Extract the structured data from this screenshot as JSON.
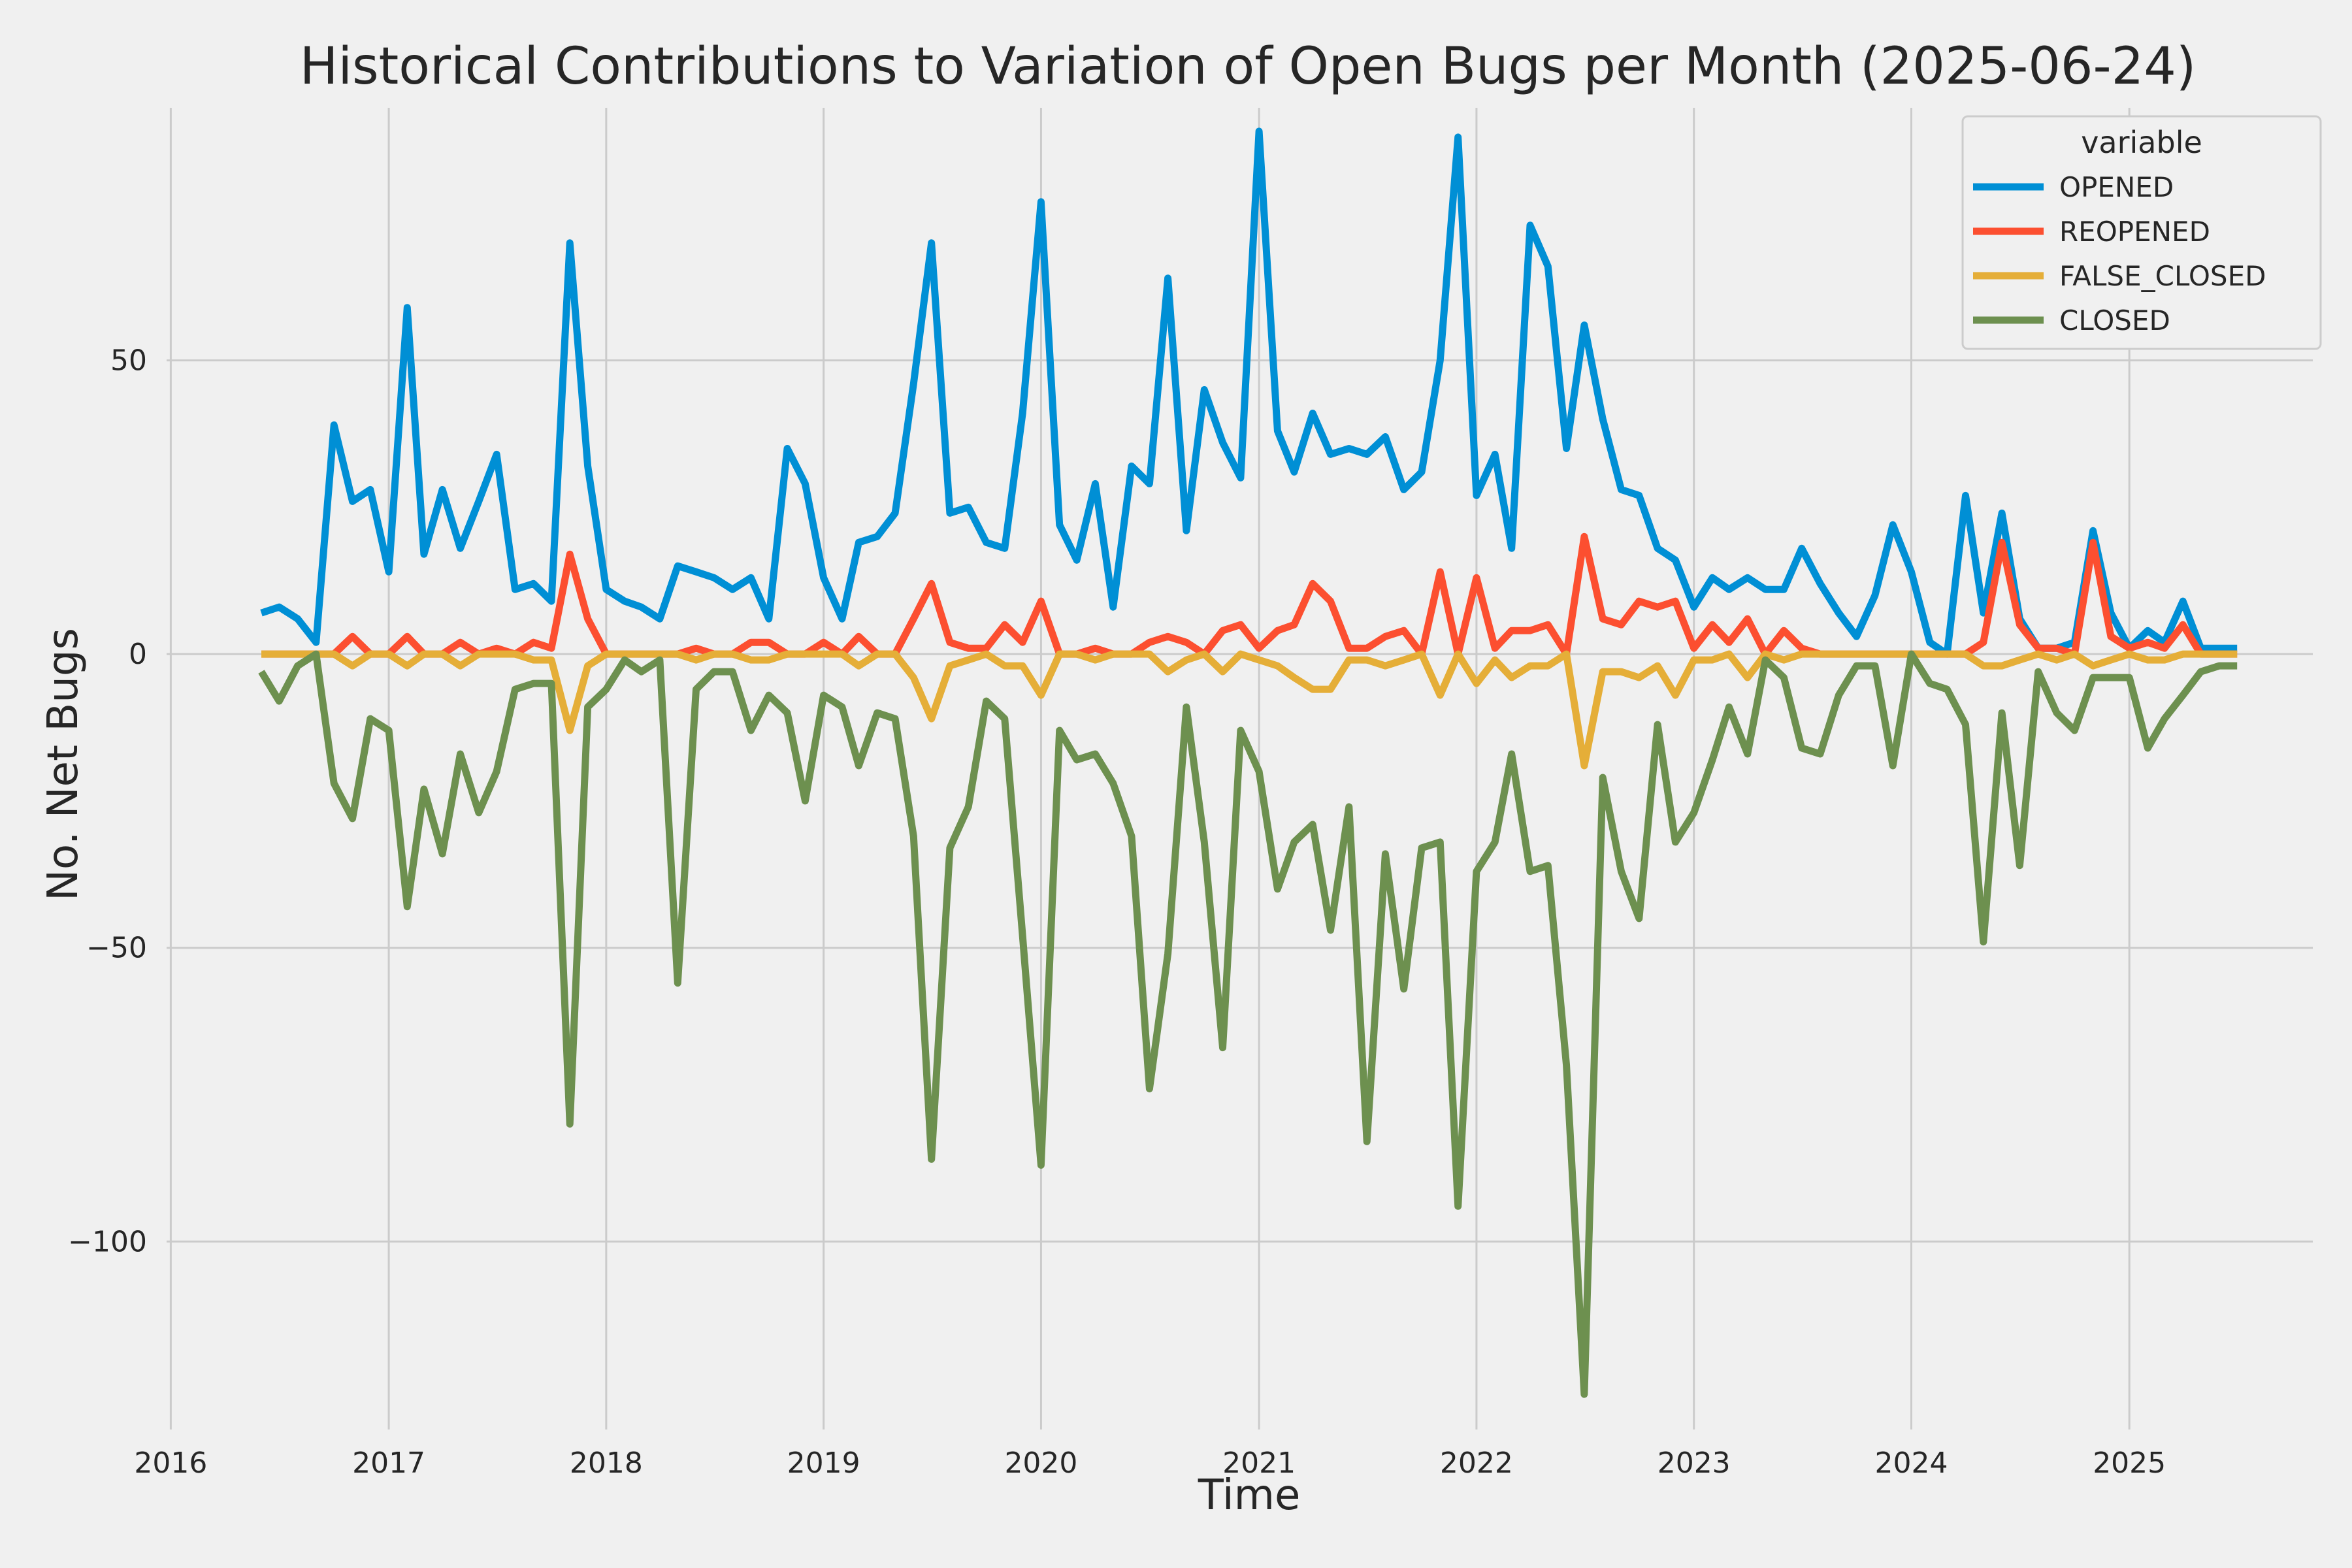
{
  "chart_data": {
    "type": "line",
    "title": "Historical Contributions to Variation of Open Bugs per Month (2025-06-24)",
    "xlabel": "Time",
    "ylabel": "No. Net Bugs",
    "x_tick_labels": [
      "2016",
      "2017",
      "2018",
      "2019",
      "2020",
      "2021",
      "2022",
      "2023",
      "2024",
      "2025"
    ],
    "y_tick_labels": [
      "50",
      "0",
      "−50",
      "−100"
    ],
    "y_ticks": [
      50,
      0,
      -50,
      -100
    ],
    "ylim": [
      -132,
      98
    ],
    "xlim": [
      "2015-12-25",
      "2025-11-05"
    ],
    "grid": true,
    "legend": {
      "title": "variable",
      "position": "top-right"
    },
    "dates": [
      "2016-06",
      "2016-07",
      "2016-08",
      "2016-09",
      "2016-10",
      "2016-11",
      "2016-12",
      "2017-01",
      "2017-02",
      "2017-03",
      "2017-04",
      "2017-05",
      "2017-06",
      "2017-07",
      "2017-08",
      "2017-09",
      "2017-10",
      "2017-11",
      "2017-12",
      "2018-01",
      "2018-02",
      "2018-03",
      "2018-04",
      "2018-05",
      "2018-06",
      "2018-07",
      "2018-08",
      "2018-09",
      "2018-10",
      "2018-11",
      "2018-12",
      "2019-01",
      "2019-02",
      "2019-03",
      "2019-04",
      "2019-05",
      "2019-06",
      "2019-07",
      "2019-08",
      "2019-09",
      "2019-10",
      "2019-11",
      "2019-12",
      "2020-01",
      "2020-02",
      "2020-03",
      "2020-04",
      "2020-05",
      "2020-06",
      "2020-07",
      "2020-08",
      "2020-09",
      "2020-10",
      "2020-11",
      "2020-12",
      "2021-01",
      "2021-02",
      "2021-03",
      "2021-04",
      "2021-05",
      "2021-06",
      "2021-07",
      "2021-08",
      "2021-09",
      "2021-10",
      "2021-11",
      "2021-12",
      "2022-01",
      "2022-02",
      "2022-03",
      "2022-04",
      "2022-05",
      "2022-06",
      "2022-07",
      "2022-08",
      "2022-09",
      "2022-10",
      "2022-11",
      "2022-12",
      "2023-01",
      "2023-02",
      "2023-03",
      "2023-04",
      "2023-05",
      "2023-06",
      "2023-07",
      "2023-08",
      "2023-09",
      "2023-10",
      "2023-11",
      "2023-12",
      "2024-01",
      "2024-02",
      "2024-03",
      "2024-04",
      "2024-05",
      "2024-06",
      "2024-07",
      "2024-08",
      "2024-09",
      "2024-10",
      "2024-11",
      "2024-12",
      "2025-01",
      "2025-02",
      "2025-03",
      "2025-04",
      "2025-05",
      "2025-06",
      "2025-07"
    ],
    "series": [
      {
        "name": "OPENED",
        "color": "#008fd5",
        "values": [
          7,
          8,
          6,
          2,
          39,
          26,
          28,
          14,
          59,
          17,
          28,
          18,
          26,
          34,
          11,
          12,
          9,
          70,
          32,
          11,
          9,
          8,
          6,
          15,
          14,
          13,
          11,
          13,
          6,
          35,
          29,
          13,
          6,
          19,
          20,
          24,
          46,
          70,
          24,
          25,
          19,
          18,
          41,
          77,
          22,
          16,
          29,
          8,
          32,
          29,
          64,
          21,
          45,
          36,
          30,
          89,
          38,
          31,
          41,
          34,
          35,
          34,
          37,
          28,
          31,
          50,
          88,
          27,
          34,
          18,
          73,
          66,
          35,
          56,
          40,
          28,
          27,
          18,
          16,
          8,
          13,
          11,
          13,
          11,
          11,
          18,
          12,
          7,
          3,
          10,
          22,
          14,
          2,
          0,
          27,
          7,
          24,
          6,
          1,
          1,
          2,
          21,
          7,
          1,
          4,
          2,
          9,
          1,
          1,
          1
        ]
      },
      {
        "name": "REOPENED",
        "color": "#fc4f30",
        "values": [
          0,
          0,
          0,
          0,
          0,
          3,
          0,
          0,
          3,
          0,
          0,
          2,
          0,
          1,
          0,
          2,
          1,
          17,
          6,
          0,
          0,
          0,
          0,
          0,
          1,
          0,
          0,
          2,
          2,
          0,
          0,
          2,
          0,
          3,
          0,
          0,
          6,
          12,
          2,
          1,
          1,
          5,
          2,
          9,
          0,
          0,
          1,
          0,
          0,
          2,
          3,
          2,
          0,
          4,
          5,
          1,
          4,
          5,
          12,
          9,
          1,
          1,
          3,
          4,
          0,
          14,
          0,
          13,
          1,
          4,
          4,
          5,
          0,
          20,
          6,
          5,
          9,
          8,
          9,
          1,
          5,
          2,
          6,
          0,
          4,
          1,
          0,
          0,
          0,
          0,
          0,
          0,
          0,
          0,
          0,
          2,
          19,
          5,
          1,
          1,
          0,
          19,
          3,
          1,
          2,
          1,
          5,
          0,
          0,
          0
        ]
      },
      {
        "name": "FALSE_CLOSED",
        "color": "#e5ae38",
        "values": [
          0,
          0,
          0,
          0,
          0,
          -2,
          0,
          0,
          -2,
          0,
          0,
          -2,
          0,
          0,
          0,
          -1,
          -1,
          -13,
          -2,
          0,
          0,
          0,
          0,
          0,
          -1,
          0,
          0,
          -1,
          -1,
          0,
          0,
          0,
          0,
          -2,
          0,
          0,
          -4,
          -11,
          -2,
          -1,
          0,
          -2,
          -2,
          -7,
          0,
          0,
          -1,
          0,
          0,
          0,
          -3,
          -1,
          0,
          -3,
          0,
          -1,
          -2,
          -4,
          -6,
          -6,
          -1,
          -1,
          -2,
          -1,
          0,
          -7,
          0,
          -5,
          -1,
          -4,
          -2,
          -2,
          0,
          -19,
          -3,
          -3,
          -4,
          -2,
          -7,
          -1,
          -1,
          0,
          -4,
          0,
          -1,
          0,
          0,
          0,
          0,
          0,
          0,
          0,
          0,
          0,
          0,
          -2,
          -2,
          -1,
          0,
          -1,
          0,
          -2,
          -1,
          0,
          -1,
          -1,
          0,
          0,
          0,
          0
        ]
      },
      {
        "name": "CLOSED",
        "color": "#6d904f",
        "values": [
          -3,
          -8,
          -2,
          0,
          -22,
          -28,
          -11,
          -13,
          -43,
          -23,
          -34,
          -17,
          -27,
          -20,
          -6,
          -5,
          -5,
          -80,
          -9,
          -6,
          -1,
          -3,
          -1,
          -56,
          -6,
          -3,
          -3,
          -13,
          -7,
          -10,
          -25,
          -7,
          -9,
          -19,
          -10,
          -11,
          -31,
          -86,
          -33,
          -26,
          -8,
          -11,
          -48,
          -87,
          -13,
          -18,
          -17,
          -22,
          -31,
          -74,
          -51,
          -9,
          -32,
          -67,
          -13,
          -20,
          -40,
          -32,
          -29,
          -47,
          -26,
          -83,
          -34,
          -57,
          -33,
          -32,
          -94,
          -37,
          -32,
          -17,
          -37,
          -36,
          -70,
          -126,
          -21,
          -37,
          -45,
          -12,
          -32,
          -27,
          -18,
          -9,
          -17,
          -1,
          -4,
          -16,
          -17,
          -7,
          -2,
          -2,
          -19,
          0,
          -5,
          -6,
          -12,
          -49,
          -10,
          -36,
          -3,
          -10,
          -13,
          -4,
          -4,
          -4,
          -16,
          -11,
          -7,
          -3,
          -2,
          -2
        ]
      }
    ]
  }
}
